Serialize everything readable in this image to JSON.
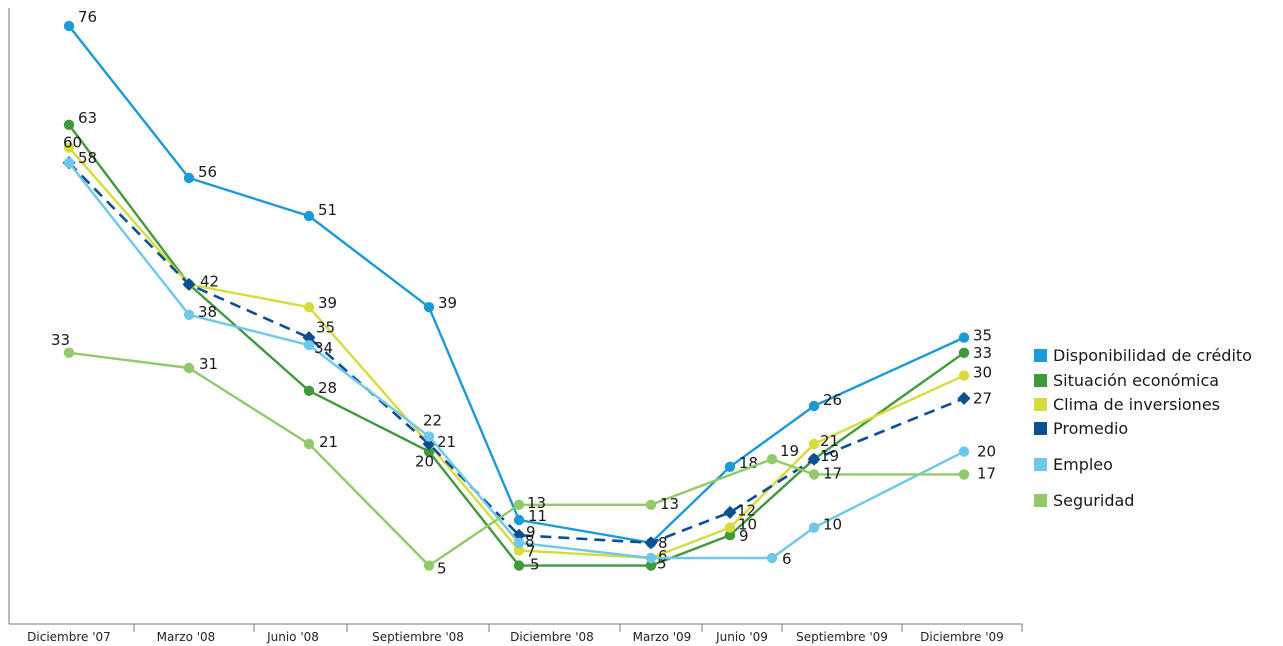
{
  "chart_data": {
    "type": "line",
    "title": "",
    "xlabel": "",
    "ylabel": "",
    "ylim": [
      0,
      80
    ],
    "grid": false,
    "legend_position": "right",
    "categories": [
      "Diciembre '07",
      "Marzo '08",
      "Junio '08",
      "Septiembre '08",
      "Diciembre '08",
      "Marzo '09",
      "Junio '09",
      "Septiembre '09",
      "Diciembre '09"
    ],
    "series": [
      {
        "name": "Disponibilidad de crédito",
        "color": "#1a9ad6",
        "dashed": false,
        "marker": "circle",
        "x": [
          0,
          1,
          2,
          3,
          4,
          5,
          6,
          7,
          8
        ],
        "values": [
          76,
          56,
          51,
          39,
          11,
          8,
          18,
          26,
          35
        ],
        "labels": [
          "76",
          "56",
          "51",
          "39",
          "11",
          "8",
          "18",
          "26",
          "35"
        ]
      },
      {
        "name": "Situación económica",
        "color": "#3f9a3c",
        "dashed": false,
        "marker": "circle",
        "x": [
          0,
          1,
          2,
          3,
          4,
          5,
          6,
          7,
          8
        ],
        "values": [
          63,
          42,
          28,
          20,
          5,
          5,
          9,
          19,
          33
        ],
        "labels": [
          "63",
          "",
          "28",
          "20",
          "5",
          "5",
          "9",
          "",
          "33"
        ]
      },
      {
        "name": "Clima de inversiones",
        "color": "#d6dc3c",
        "dashed": false,
        "marker": "circle",
        "x": [
          0,
          1,
          2,
          3,
          4,
          5,
          6,
          7,
          8
        ],
        "values": [
          60,
          42,
          39,
          21,
          7,
          6,
          10,
          21,
          30
        ],
        "labels": [
          "60",
          "",
          "39",
          "",
          "7",
          "6",
          "10",
          "21",
          "30"
        ]
      },
      {
        "name": "Promedio",
        "color": "#0d4f92",
        "dashed": true,
        "marker": "diamond",
        "x": [
          0,
          1,
          2,
          3,
          4,
          5,
          6,
          7,
          8
        ],
        "values": [
          58,
          42,
          35,
          21,
          9,
          8,
          12,
          19,
          27
        ],
        "labels": [
          "",
          "42",
          "35",
          "21",
          "9",
          "",
          "12",
          "19",
          "27"
        ]
      },
      {
        "name": "Empleo",
        "color": "#6ec8ec",
        "dashed": false,
        "marker": "circle",
        "x": [
          0,
          1,
          2,
          3,
          4,
          5,
          6.5,
          7,
          8
        ],
        "values": [
          58,
          38,
          34,
          22,
          8,
          6,
          6,
          10,
          20
        ],
        "labels": [
          "58",
          "38",
          "34",
          "22",
          "8",
          "",
          "6",
          "10",
          "20"
        ]
      },
      {
        "name": "Seguridad",
        "color": "#92c96a",
        "dashed": false,
        "marker": "circle",
        "x": [
          0,
          1,
          2,
          3,
          4,
          5,
          6.5,
          7,
          8
        ],
        "values": [
          33,
          31,
          21,
          5,
          13,
          13,
          19,
          17,
          17
        ],
        "labels": [
          "33",
          "31",
          "21",
          "5",
          "13",
          "13",
          "19",
          "17",
          "17"
        ]
      }
    ]
  }
}
